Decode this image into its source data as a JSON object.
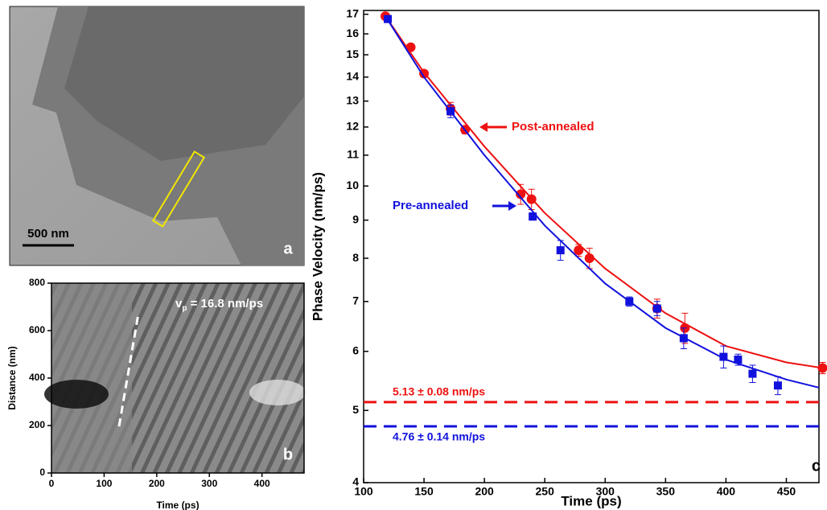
{
  "chart_data": [
    {
      "type": "image",
      "scale_bar": "500 nm",
      "panel_label": "a"
    },
    {
      "type": "image-axes",
      "panel_label": "b",
      "x_label": "Time (ps)",
      "y_label": "Distance (nm)",
      "annotation": [
        "v",
        "p",
        " = 16.8 nm/ps"
      ],
      "xlim": [
        0,
        480
      ],
      "xticks": [
        0,
        100,
        200,
        300,
        400
      ],
      "ylim": [
        0,
        800
      ],
      "yticks": [
        0,
        200,
        400,
        600,
        800
      ]
    },
    {
      "type": "scatter",
      "panel_label": "c",
      "x_label": "Time (ps)",
      "y_label": "Phase Velocity (nm/ps)",
      "log_y": true,
      "xlim": [
        100,
        477
      ],
      "xticks": [
        100,
        150,
        200,
        250,
        300,
        350,
        400,
        450
      ],
      "ylim": [
        4,
        17.2
      ],
      "yticks": [
        4,
        5,
        6,
        7,
        8,
        9,
        10,
        11,
        12,
        13,
        14,
        15,
        16,
        17
      ],
      "series": [
        {
          "name": "Post-annealed",
          "color": "#ee1111",
          "marker": "circle",
          "x": [
            118,
            139,
            150,
            172,
            184,
            230,
            239,
            278,
            287,
            343,
            366,
            480
          ],
          "values": [
            16.9,
            15.35,
            14.15,
            12.7,
            11.9,
            9.75,
            9.6,
            8.2,
            8.0,
            6.85,
            6.45,
            5.7
          ],
          "errors": [
            0.15,
            0.15,
            0.15,
            0.25,
            0.15,
            0.3,
            0.3,
            0.15,
            0.25,
            0.2,
            0.3,
            0.1
          ],
          "fit_x": [
            118,
            150,
            200,
            250,
            300,
            350,
            400,
            450,
            480
          ],
          "fit": [
            16.9,
            14.2,
            11.3,
            9.2,
            7.75,
            6.75,
            6.1,
            5.8,
            5.7
          ],
          "asymptote": 5.13,
          "asymptote_label": "5.13 ± 0.08 nm/ps"
        },
        {
          "name": "Pre-annealed",
          "color": "#1111dd",
          "marker": "square",
          "x": [
            120,
            172,
            240,
            263,
            320,
            343,
            365,
            398,
            410,
            422,
            443
          ],
          "values": [
            16.75,
            12.6,
            9.1,
            8.2,
            7.0,
            6.85,
            6.25,
            5.9,
            5.85,
            5.6,
            5.4
          ],
          "errors": [
            0.15,
            0.25,
            0.1,
            0.25,
            0.1,
            0.15,
            0.2,
            0.2,
            0.1,
            0.15,
            0.15
          ],
          "fit_x": [
            118,
            150,
            200,
            250,
            300,
            350,
            400,
            450,
            480
          ],
          "fit": [
            16.9,
            14.0,
            11.0,
            8.85,
            7.4,
            6.45,
            5.85,
            5.5,
            5.35
          ],
          "asymptote": 4.76,
          "asymptote_label": "4.76 ± 0.14 nm/ps"
        }
      ]
    }
  ]
}
